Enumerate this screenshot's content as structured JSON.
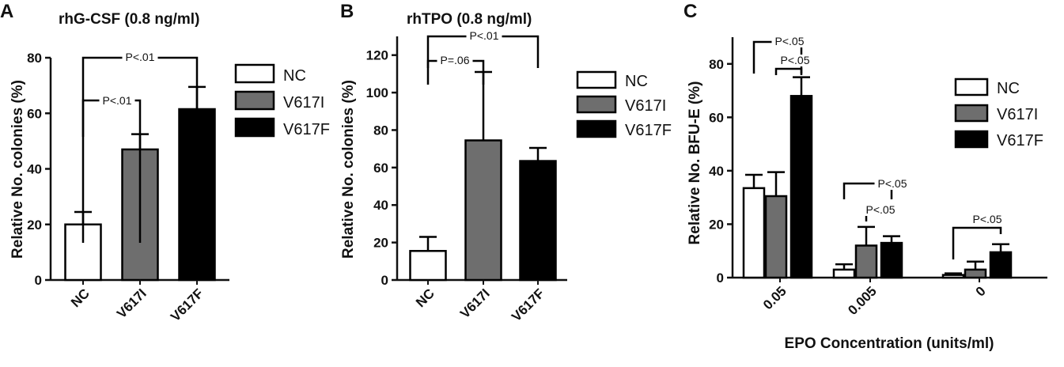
{
  "chart_data": [
    {
      "type": "bar",
      "panel_letter": "A",
      "title": "rhG-CSF (0.8 ng/ml)",
      "xlabel": "",
      "ylabel": "Relative No. colonies  (%)",
      "ylim": [
        0,
        80
      ],
      "yticks": [
        "0",
        "20",
        "40",
        "60",
        "80"
      ],
      "categories": [
        "NC",
        "V617I",
        "V617F"
      ],
      "series": [
        {
          "values": [
            20,
            47,
            61.5
          ],
          "errors": [
            4.5,
            5.5,
            8
          ]
        }
      ],
      "colors": [
        "#ffffff",
        "#6e6e6e",
        "#000000"
      ],
      "legend": {
        "placement": "right",
        "items": [
          "NC",
          "V617I",
          "V617F"
        ]
      },
      "annotations": [
        {
          "text": "P<.01",
          "from": 0,
          "to": 1
        },
        {
          "text": "P<.01",
          "from": 0,
          "to": 2
        }
      ],
      "grid": false
    },
    {
      "type": "bar",
      "panel_letter": "B",
      "title": "rhTPO (0.8 ng/ml)",
      "xlabel": "",
      "ylabel": "Relative No. colonies  (%)",
      "ylim": [
        0,
        130
      ],
      "yticks": [
        "0",
        "20",
        "40",
        "60",
        "80",
        "100",
        "120"
      ],
      "categories": [
        "NC",
        "V617I",
        "V617F"
      ],
      "series": [
        {
          "values": [
            15.5,
            74.5,
            63.5
          ],
          "errors": [
            7.5,
            36.5,
            7
          ]
        }
      ],
      "colors": [
        "#ffffff",
        "#6e6e6e",
        "#000000"
      ],
      "legend": {
        "placement": "right",
        "items": [
          "NC",
          "V617I",
          "V617F"
        ]
      },
      "annotations": [
        {
          "text": "P=.06",
          "from": 0,
          "to": 1
        },
        {
          "text": "P<.01",
          "from": 0,
          "to": 2
        }
      ],
      "grid": false
    },
    {
      "type": "bar",
      "panel_letter": "C",
      "title": "",
      "xlabel": "EPO Concentration (units/ml)",
      "ylabel": "Relative No. BFU-E  (%)",
      "ylim": [
        0,
        90
      ],
      "yticks": [
        "0",
        "20",
        "40",
        "60",
        "80"
      ],
      "categories": [
        "0.05",
        "0.005",
        "0"
      ],
      "series": [
        {
          "name": "NC",
          "values": [
            33.5,
            3,
            1
          ],
          "errors": [
            5,
            2,
            0.6
          ]
        },
        {
          "name": "V617I",
          "values": [
            30.5,
            12,
            3
          ],
          "errors": [
            9,
            7,
            3
          ]
        },
        {
          "name": "V617F",
          "values": [
            68,
            13,
            9.5
          ],
          "errors": [
            7,
            2.5,
            3
          ]
        }
      ],
      "colors": [
        "#ffffff",
        "#6e6e6e",
        "#000000"
      ],
      "legend": {
        "placement": "top-right",
        "items": [
          "NC",
          "V617I",
          "V617F"
        ]
      },
      "annotations": [
        {
          "text": "P<.05",
          "group": 0,
          "from": 0,
          "to": 2
        },
        {
          "text": "P<.05",
          "group": 0,
          "from": 1,
          "to": 2
        },
        {
          "text": "P<.05",
          "group": 1,
          "from": 0,
          "to": 2
        },
        {
          "text": "P<.05",
          "group": 1,
          "from": 1,
          "to": 2
        },
        {
          "text": "P<.05",
          "group": 2,
          "from": 0,
          "to": 2
        }
      ],
      "grid": false
    }
  ]
}
